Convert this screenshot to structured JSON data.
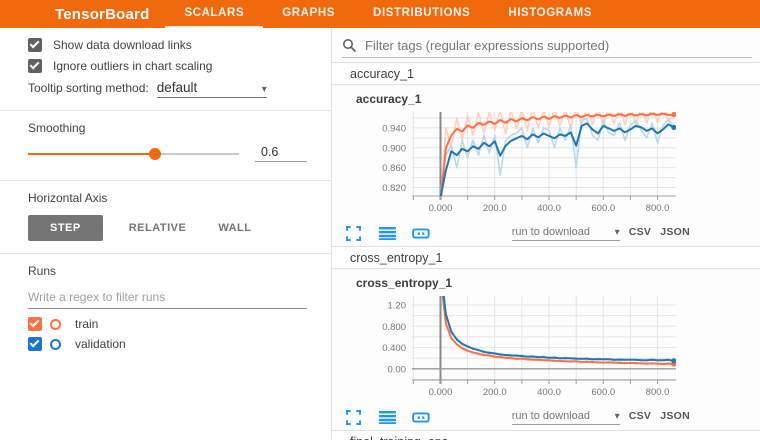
{
  "header": {
    "title": "TensorBoard",
    "tabs": [
      {
        "label": "SCALARS",
        "active": true
      },
      {
        "label": "GRAPHS",
        "active": false
      },
      {
        "label": "DISTRIBUTIONS",
        "active": false
      },
      {
        "label": "HISTOGRAMS",
        "active": false
      }
    ]
  },
  "colors": {
    "accent": "#f0690c",
    "icon_blue": "#2196f3",
    "train": "#ff7043",
    "validation": "#1f77b4"
  },
  "sidebar": {
    "checkboxes": [
      {
        "label": "Show data download links",
        "checked": true
      },
      {
        "label": "Ignore outliers in chart scaling",
        "checked": true
      }
    ],
    "tooltip_sorting": {
      "label": "Tooltip sorting method:",
      "value": "default"
    },
    "smoothing": {
      "label": "Smoothing",
      "value": "0.6"
    },
    "horizontal_axis": {
      "label": "Horizontal Axis",
      "options": [
        {
          "label": "STEP",
          "active": true
        },
        {
          "label": "RELATIVE",
          "active": false
        },
        {
          "label": "WALL",
          "active": false
        }
      ]
    },
    "runs": {
      "label": "Runs",
      "filter_placeholder": "Write a regex to filter runs",
      "items": [
        {
          "label": "train",
          "color": "#ff7043",
          "checked": true
        },
        {
          "label": "validation",
          "color": "#1976d2",
          "checked": true
        }
      ]
    }
  },
  "main": {
    "filter_placeholder": "Filter tags (regular expressions supported)",
    "sections": [
      {
        "title": "accuracy_1"
      },
      {
        "title": "cross_entropy_1"
      },
      {
        "title": "final_training_ops"
      }
    ],
    "card_toolbar": {
      "download_label": "run to download",
      "csv": "CSV",
      "json": "JSON"
    }
  },
  "chart_data": [
    {
      "type": "line",
      "title": "accuracy_1",
      "x_start": 0,
      "x_step": 20,
      "xlim": [
        -105,
        868
      ],
      "ylim": [
        0.803,
        0.972
      ],
      "x_ticks": [
        0,
        200,
        400,
        600,
        800
      ],
      "x_tick_labels": [
        "0.000",
        "200.0",
        "400.0",
        "600.0",
        "800.0"
      ],
      "y_ticks": [
        0.82,
        0.86,
        0.9,
        0.94
      ],
      "y_tick_labels": [
        "0.820",
        "0.860",
        "0.900",
        "0.940"
      ],
      "x_minor_step": 100,
      "y_minor_step": 0.02,
      "grid": true,
      "legend": "none",
      "series": [
        {
          "name": "train",
          "color": "#ff7043",
          "color_light": "#ffd0c0",
          "smoothed": [
            0.79,
            0.9,
            0.925,
            0.938,
            0.933,
            0.945,
            0.94,
            0.95,
            0.946,
            0.953,
            0.948,
            0.956,
            0.95,
            0.958,
            0.953,
            0.96,
            0.955,
            0.962,
            0.957,
            0.963,
            0.958,
            0.964,
            0.96,
            0.965,
            0.961,
            0.966,
            0.962,
            0.966,
            0.963,
            0.967,
            0.963,
            0.967,
            0.964,
            0.968,
            0.964,
            0.968,
            0.965,
            0.968,
            0.965,
            0.969,
            0.966,
            0.969,
            0.966,
            0.967
          ],
          "raw": [
            0.79,
            0.94,
            0.9,
            0.96,
            0.915,
            0.965,
            0.925,
            0.97,
            0.93,
            0.972,
            0.935,
            0.975,
            0.928,
            0.976,
            0.938,
            0.978,
            0.935,
            0.98,
            0.94,
            0.975,
            0.942,
            0.98,
            0.944,
            0.978,
            0.94,
            0.982,
            0.945,
            0.98,
            0.946,
            0.983,
            0.944,
            0.981,
            0.948,
            0.982,
            0.946,
            0.984,
            0.948,
            0.982,
            0.95,
            0.985,
            0.95,
            0.983,
            0.952,
            0.97
          ]
        },
        {
          "name": "validation",
          "color": "#1f77b4",
          "color_light": "#bcd6ea",
          "smoothed": [
            0.8,
            0.855,
            0.893,
            0.885,
            0.898,
            0.893,
            0.903,
            0.898,
            0.91,
            0.903,
            0.913,
            0.884,
            0.904,
            0.914,
            0.919,
            0.924,
            0.917,
            0.927,
            0.921,
            0.929,
            0.924,
            0.919,
            0.927,
            0.924,
            0.931,
            0.904,
            0.944,
            0.949,
            0.937,
            0.929,
            0.944,
            0.939,
            0.934,
            0.939,
            0.931,
            0.937,
            0.944,
            0.941,
            0.934,
            0.939,
            0.929,
            0.937,
            0.947,
            0.941
          ],
          "raw": [
            0.8,
            0.885,
            0.905,
            0.86,
            0.915,
            0.88,
            0.915,
            0.885,
            0.925,
            0.89,
            0.925,
            0.845,
            0.915,
            0.925,
            0.93,
            0.94,
            0.9,
            0.94,
            0.91,
            0.94,
            0.935,
            0.9,
            0.94,
            0.915,
            0.945,
            0.86,
            0.955,
            0.96,
            0.925,
            0.915,
            0.955,
            0.93,
            0.925,
            0.95,
            0.915,
            0.945,
            0.955,
            0.935,
            0.92,
            0.95,
            0.91,
            0.945,
            0.958,
            0.941
          ]
        }
      ]
    },
    {
      "type": "line",
      "title": "cross_entropy_1",
      "x_start": 0,
      "x_step": 20,
      "xlim": [
        -105,
        868
      ],
      "ylim": [
        -0.21,
        1.37
      ],
      "x_ticks": [
        0,
        200,
        400,
        600,
        800
      ],
      "x_tick_labels": [
        "0.000",
        "200.0",
        "400.0",
        "600.0",
        "800.0"
      ],
      "y_ticks": [
        0.0,
        0.4,
        0.8,
        1.2
      ],
      "y_tick_labels": [
        "0.00",
        "0.400",
        "0.800",
        "1.20"
      ],
      "x_minor_step": 100,
      "y_minor_step": 0.2,
      "grid": true,
      "legend": "none",
      "series": [
        {
          "name": "train",
          "color": "#ff7043",
          "color_light": "#ffd0c0",
          "smoothed": [
            1.75,
            0.85,
            0.58,
            0.46,
            0.39,
            0.34,
            0.31,
            0.28,
            0.26,
            0.25,
            0.23,
            0.22,
            0.21,
            0.2,
            0.19,
            0.19,
            0.18,
            0.17,
            0.17,
            0.16,
            0.16,
            0.15,
            0.15,
            0.14,
            0.14,
            0.14,
            0.13,
            0.13,
            0.13,
            0.12,
            0.12,
            0.12,
            0.12,
            0.11,
            0.11,
            0.11,
            0.11,
            0.1,
            0.1,
            0.1,
            0.1,
            0.09,
            0.1,
            0.09
          ],
          "raw": [
            1.75,
            0.88,
            0.55,
            0.48,
            0.37,
            0.36,
            0.29,
            0.3,
            0.24,
            0.27,
            0.21,
            0.24,
            0.19,
            0.22,
            0.17,
            0.21,
            0.16,
            0.19,
            0.15,
            0.18,
            0.14,
            0.17,
            0.13,
            0.16,
            0.12,
            0.16,
            0.11,
            0.15,
            0.11,
            0.14,
            0.1,
            0.14,
            0.1,
            0.13,
            0.09,
            0.13,
            0.09,
            0.12,
            0.08,
            0.12,
            0.08,
            0.11,
            0.08,
            0.1
          ]
        },
        {
          "name": "validation",
          "color": "#1f77b4",
          "color_light": "#bcd6ea",
          "smoothed": [
            1.9,
            1.02,
            0.7,
            0.55,
            0.47,
            0.42,
            0.38,
            0.35,
            0.32,
            0.3,
            0.29,
            0.27,
            0.26,
            0.25,
            0.25,
            0.24,
            0.23,
            0.23,
            0.22,
            0.22,
            0.21,
            0.21,
            0.2,
            0.2,
            0.2,
            0.19,
            0.19,
            0.19,
            0.18,
            0.18,
            0.18,
            0.18,
            0.17,
            0.17,
            0.17,
            0.17,
            0.17,
            0.16,
            0.16,
            0.17,
            0.16,
            0.16,
            0.17,
            0.15
          ],
          "raw": [
            1.9,
            1.05,
            0.68,
            0.57,
            0.45,
            0.44,
            0.36,
            0.37,
            0.3,
            0.32,
            0.27,
            0.29,
            0.25,
            0.27,
            0.23,
            0.26,
            0.22,
            0.25,
            0.21,
            0.24,
            0.2,
            0.23,
            0.19,
            0.22,
            0.19,
            0.21,
            0.18,
            0.2,
            0.17,
            0.2,
            0.17,
            0.19,
            0.16,
            0.19,
            0.16,
            0.18,
            0.16,
            0.18,
            0.15,
            0.18,
            0.15,
            0.17,
            0.16,
            0.16
          ]
        }
      ]
    }
  ]
}
